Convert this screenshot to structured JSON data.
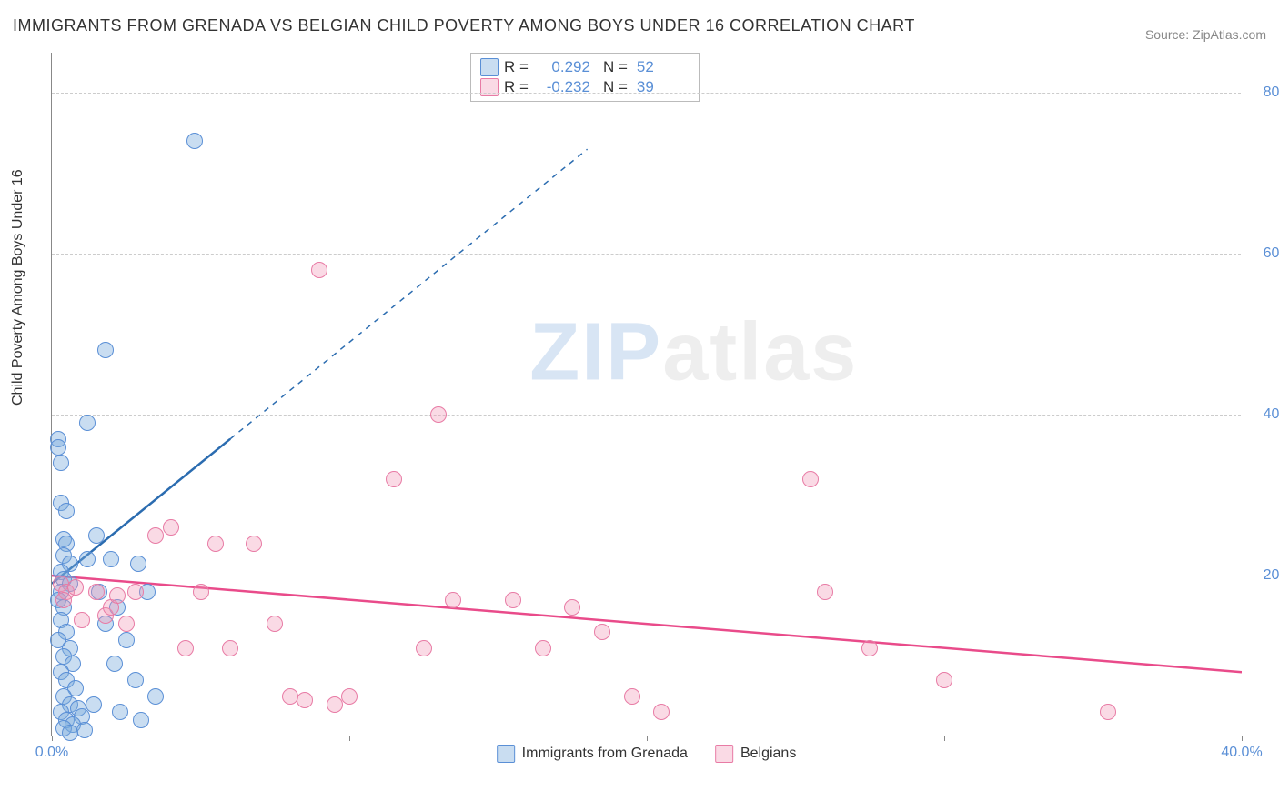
{
  "title": "IMMIGRANTS FROM GRENADA VS BELGIAN CHILD POVERTY AMONG BOYS UNDER 16 CORRELATION CHART",
  "source": "Source: ZipAtlas.com",
  "y_axis_label": "Child Poverty Among Boys Under 16",
  "watermark": {
    "part1": "ZIP",
    "part2": "atlas"
  },
  "chart": {
    "type": "scatter",
    "xlim": [
      0,
      40
    ],
    "ylim": [
      0,
      85
    ],
    "x_ticks": [
      0,
      10,
      20,
      30,
      40
    ],
    "x_tick_labels": [
      "0.0%",
      "",
      "",
      "",
      "40.0%"
    ],
    "y_gridlines": [
      20,
      40,
      60,
      80
    ],
    "y_tick_labels": [
      "20.0%",
      "40.0%",
      "60.0%",
      "80.0%"
    ],
    "grid_color": "#cccccc",
    "background_color": "#ffffff",
    "series": [
      {
        "name": "Immigrants from Grenada",
        "color_fill": "rgba(120,170,220,0.4)",
        "color_stroke": "#5a8fd6",
        "r_value": "0.292",
        "n_value": "52",
        "trend": {
          "x1": 0,
          "y1": 19,
          "x2_solid": 6,
          "y2_solid": 37,
          "x2_dash": 18,
          "y2_dash": 73,
          "color": "#2b6cb0"
        },
        "points": [
          [
            0.2,
            37
          ],
          [
            0.2,
            36
          ],
          [
            0.3,
            34
          ],
          [
            0.3,
            29
          ],
          [
            0.5,
            28
          ],
          [
            0.4,
            24.5
          ],
          [
            0.5,
            24
          ],
          [
            0.4,
            22.5
          ],
          [
            0.6,
            21.5
          ],
          [
            0.3,
            20.5
          ],
          [
            0.4,
            19.5
          ],
          [
            0.6,
            19
          ],
          [
            0.3,
            18
          ],
          [
            0.2,
            17
          ],
          [
            0.4,
            16
          ],
          [
            0.3,
            14.5
          ],
          [
            0.5,
            13
          ],
          [
            0.2,
            12
          ],
          [
            0.6,
            11
          ],
          [
            0.4,
            10
          ],
          [
            0.7,
            9
          ],
          [
            0.3,
            8
          ],
          [
            0.5,
            7
          ],
          [
            0.8,
            6
          ],
          [
            0.4,
            5
          ],
          [
            0.6,
            4
          ],
          [
            0.9,
            3.5
          ],
          [
            0.3,
            3
          ],
          [
            1.0,
            2.5
          ],
          [
            0.5,
            2
          ],
          [
            0.7,
            1.5
          ],
          [
            0.4,
            1
          ],
          [
            1.1,
            0.8
          ],
          [
            0.6,
            0.5
          ],
          [
            1.2,
            39
          ],
          [
            1.8,
            48
          ],
          [
            4.8,
            74
          ],
          [
            1.5,
            25
          ],
          [
            1.2,
            22
          ],
          [
            2.0,
            22
          ],
          [
            1.6,
            18
          ],
          [
            2.2,
            16
          ],
          [
            1.8,
            14
          ],
          [
            2.5,
            12
          ],
          [
            2.9,
            21.5
          ],
          [
            3.2,
            18
          ],
          [
            2.1,
            9
          ],
          [
            2.8,
            7
          ],
          [
            3.5,
            5
          ],
          [
            1.4,
            4
          ],
          [
            2.3,
            3
          ],
          [
            3.0,
            2
          ]
        ]
      },
      {
        "name": "Belgians",
        "color_fill": "rgba(240,150,180,0.35)",
        "color_stroke": "#e87ba5",
        "r_value": "-0.232",
        "n_value": "39",
        "trend": {
          "x1": 0,
          "y1": 20,
          "x2_solid": 40,
          "y2_solid": 8,
          "color": "#e94b8a"
        },
        "points": [
          [
            0.3,
            19
          ],
          [
            0.5,
            18
          ],
          [
            0.4,
            17
          ],
          [
            0.8,
            18.5
          ],
          [
            1.0,
            14.5
          ],
          [
            1.5,
            18
          ],
          [
            1.8,
            15
          ],
          [
            2.0,
            16
          ],
          [
            2.2,
            17.5
          ],
          [
            2.5,
            14
          ],
          [
            2.8,
            18
          ],
          [
            3.5,
            25
          ],
          [
            4.0,
            26
          ],
          [
            5.5,
            24
          ],
          [
            6.8,
            24
          ],
          [
            5.0,
            18
          ],
          [
            6.0,
            11
          ],
          [
            7.5,
            14
          ],
          [
            4.5,
            11
          ],
          [
            8.0,
            5
          ],
          [
            8.5,
            4.5
          ],
          [
            9.5,
            4
          ],
          [
            10.0,
            5
          ],
          [
            9.0,
            58
          ],
          [
            11.5,
            32
          ],
          [
            13.0,
            40
          ],
          [
            12.5,
            11
          ],
          [
            13.5,
            17
          ],
          [
            15.5,
            17
          ],
          [
            16.5,
            11
          ],
          [
            17.5,
            16
          ],
          [
            18.5,
            13
          ],
          [
            19.5,
            5
          ],
          [
            20.5,
            3
          ],
          [
            25.5,
            32
          ],
          [
            26.0,
            18
          ],
          [
            27.5,
            11
          ],
          [
            30.0,
            7
          ],
          [
            35.5,
            3
          ]
        ]
      }
    ]
  },
  "bottom_legend": [
    {
      "swatch": "blue",
      "label": "Immigrants from Grenada"
    },
    {
      "swatch": "pink",
      "label": "Belgians"
    }
  ],
  "stats_legend": {
    "r_label": "R  =",
    "n_label": "N  ="
  }
}
